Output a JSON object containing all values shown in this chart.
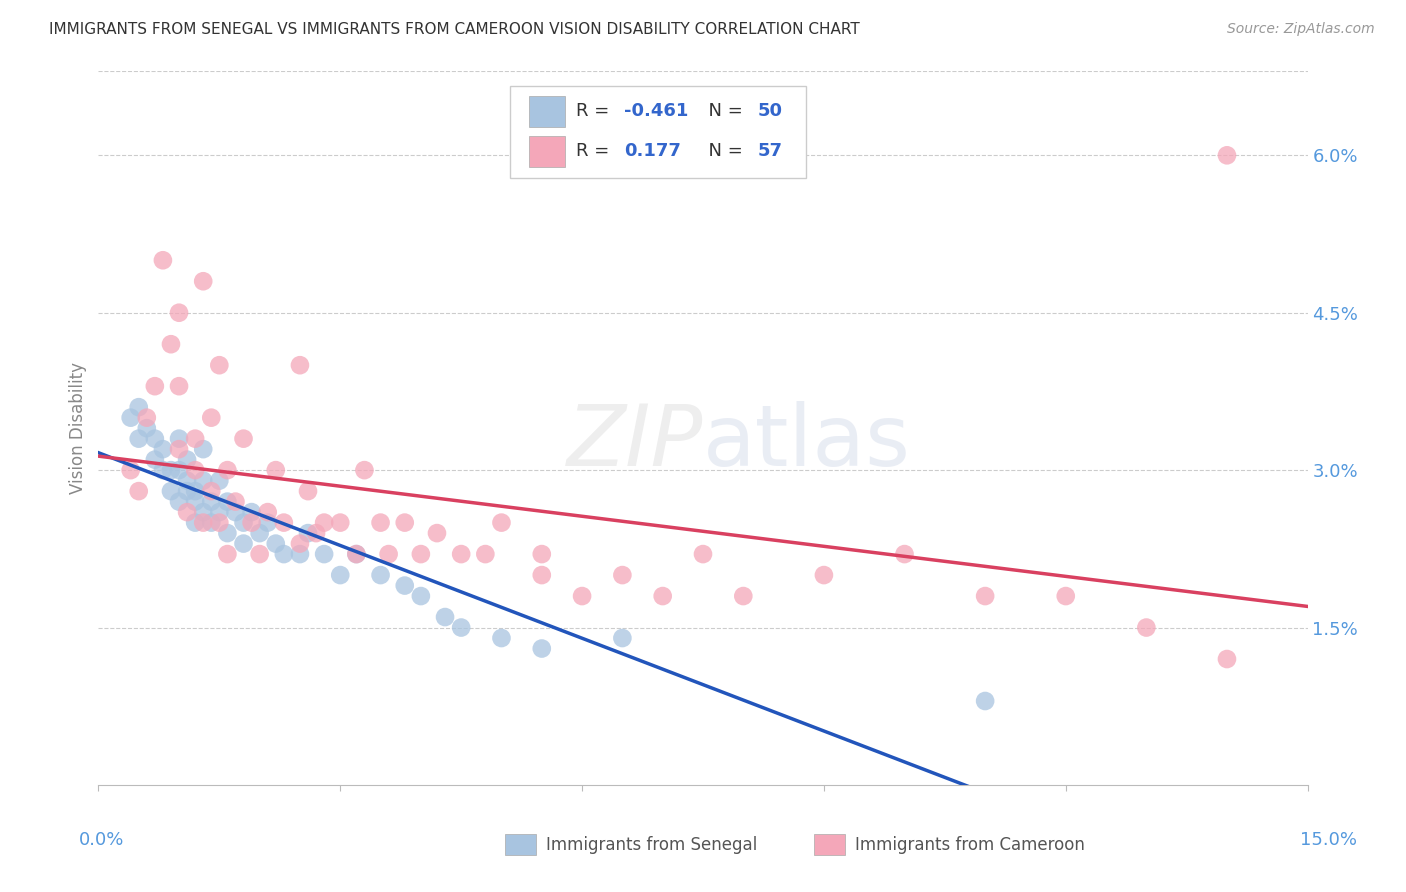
{
  "title": "IMMIGRANTS FROM SENEGAL VS IMMIGRANTS FROM CAMEROON VISION DISABILITY CORRELATION CHART",
  "source": "Source: ZipAtlas.com",
  "ylabel": "Vision Disability",
  "ytick_labels": [
    "1.5%",
    "3.0%",
    "4.5%",
    "6.0%"
  ],
  "ytick_values": [
    0.015,
    0.03,
    0.045,
    0.06
  ],
  "xlim": [
    0.0,
    0.15
  ],
  "ylim": [
    0.0,
    0.068
  ],
  "legend_r_senegal": "-0.461",
  "legend_n_senegal": "50",
  "legend_r_cameroon": "0.177",
  "legend_n_cameroon": "57",
  "color_senegal": "#a8c4e0",
  "color_cameroon": "#f4a7b9",
  "line_color_senegal": "#2255bb",
  "line_color_cameroon": "#d94060",
  "background_color": "#ffffff",
  "watermark_zip": "ZIP",
  "watermark_atlas": "atlas",
  "senegal_x": [
    0.004,
    0.005,
    0.005,
    0.006,
    0.007,
    0.007,
    0.008,
    0.008,
    0.009,
    0.009,
    0.01,
    0.01,
    0.01,
    0.011,
    0.011,
    0.011,
    0.012,
    0.012,
    0.012,
    0.013,
    0.013,
    0.013,
    0.014,
    0.014,
    0.015,
    0.015,
    0.016,
    0.016,
    0.017,
    0.018,
    0.018,
    0.019,
    0.02,
    0.021,
    0.022,
    0.023,
    0.025,
    0.026,
    0.028,
    0.03,
    0.032,
    0.035,
    0.038,
    0.04,
    0.043,
    0.045,
    0.05,
    0.055,
    0.065,
    0.11
  ],
  "senegal_y": [
    0.035,
    0.033,
    0.036,
    0.034,
    0.033,
    0.031,
    0.03,
    0.032,
    0.028,
    0.03,
    0.027,
    0.03,
    0.033,
    0.028,
    0.029,
    0.031,
    0.027,
    0.025,
    0.028,
    0.026,
    0.029,
    0.032,
    0.025,
    0.027,
    0.026,
    0.029,
    0.024,
    0.027,
    0.026,
    0.023,
    0.025,
    0.026,
    0.024,
    0.025,
    0.023,
    0.022,
    0.022,
    0.024,
    0.022,
    0.02,
    0.022,
    0.02,
    0.019,
    0.018,
    0.016,
    0.015,
    0.014,
    0.013,
    0.014,
    0.008
  ],
  "cameroon_x": [
    0.004,
    0.005,
    0.006,
    0.007,
    0.008,
    0.009,
    0.01,
    0.01,
    0.011,
    0.012,
    0.012,
    0.013,
    0.013,
    0.014,
    0.014,
    0.015,
    0.015,
    0.016,
    0.016,
    0.017,
    0.018,
    0.019,
    0.02,
    0.021,
    0.022,
    0.023,
    0.025,
    0.026,
    0.027,
    0.028,
    0.03,
    0.032,
    0.033,
    0.035,
    0.036,
    0.038,
    0.04,
    0.042,
    0.045,
    0.048,
    0.05,
    0.055,
    0.06,
    0.065,
    0.07,
    0.075,
    0.08,
    0.09,
    0.1,
    0.11,
    0.12,
    0.13,
    0.14,
    0.01,
    0.025,
    0.055,
    0.14
  ],
  "cameroon_y": [
    0.03,
    0.028,
    0.035,
    0.038,
    0.05,
    0.042,
    0.032,
    0.038,
    0.026,
    0.03,
    0.033,
    0.048,
    0.025,
    0.035,
    0.028,
    0.04,
    0.025,
    0.03,
    0.022,
    0.027,
    0.033,
    0.025,
    0.022,
    0.026,
    0.03,
    0.025,
    0.023,
    0.028,
    0.024,
    0.025,
    0.025,
    0.022,
    0.03,
    0.025,
    0.022,
    0.025,
    0.022,
    0.024,
    0.022,
    0.022,
    0.025,
    0.02,
    0.018,
    0.02,
    0.018,
    0.022,
    0.018,
    0.02,
    0.022,
    0.018,
    0.018,
    0.015,
    0.012,
    0.045,
    0.04,
    0.022,
    0.06
  ]
}
